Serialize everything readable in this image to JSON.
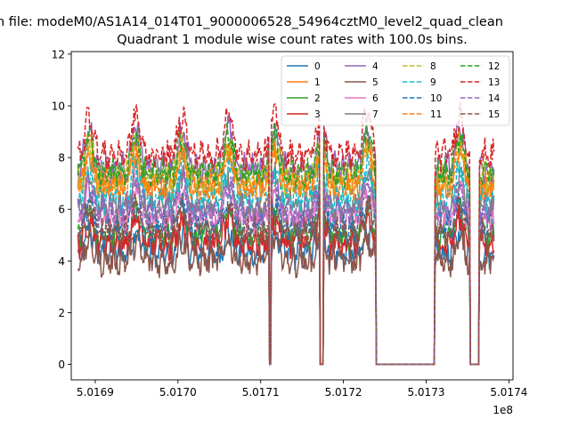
{
  "figure": {
    "suptitle": "n file: modeM0/AS1A14_014T01_9000006528_54964cztM0_level2_quad_clean",
    "title": "Quadrant 1 module wise count rates with 100.0s bins."
  },
  "chart_data": {
    "type": "line",
    "title": "Quadrant 1 module wise count rates with 100.0s bins.",
    "xlabel": "",
    "ylabel": "",
    "x_offset_label": "1e8",
    "xlim": [
      501687100,
      501740500
    ],
    "ylim": [
      -0.6,
      12.1
    ],
    "x_ticks": [
      501690000,
      501700000,
      501710000,
      501720000,
      501730000,
      501740000
    ],
    "x_tick_labels": [
      "5.0169",
      "5.0170",
      "5.0171",
      "5.0172",
      "5.0173",
      "5.0174"
    ],
    "y_ticks": [
      0,
      2,
      4,
      6,
      8,
      10,
      12
    ],
    "y_tick_labels": [
      "0",
      "2",
      "4",
      "6",
      "8",
      "10",
      "12"
    ],
    "grid": false,
    "legend": {
      "placement": "top-right",
      "columns": 4
    },
    "x_range": [
      501687900,
      501738200
    ],
    "gaps": [
      [
        501711000,
        501711200
      ],
      [
        501717200,
        501717600
      ],
      [
        501723900,
        501725300
      ],
      [
        501725300,
        501731000
      ],
      [
        501735300,
        501736400
      ]
    ],
    "series": [
      {
        "name": "0",
        "color": "#1f77b4",
        "dash": "solid",
        "level": 4.3
      },
      {
        "name": "1",
        "color": "#ff7f0e",
        "dash": "solid",
        "level": 6.9
      },
      {
        "name": "2",
        "color": "#2ca02c",
        "dash": "solid",
        "level": 5.0
      },
      {
        "name": "3",
        "color": "#d62728",
        "dash": "solid",
        "level": 4.7
      },
      {
        "name": "4",
        "color": "#9467bd",
        "dash": "solid",
        "level": 7.6
      },
      {
        "name": "5",
        "color": "#8c564b",
        "dash": "solid",
        "level": 4.0
      },
      {
        "name": "6",
        "color": "#e377c2",
        "dash": "solid",
        "level": 5.6
      },
      {
        "name": "7",
        "color": "#7f7f7f",
        "dash": "solid",
        "level": 6.1
      },
      {
        "name": "8",
        "color": "#bcbd22",
        "dash": "dashed",
        "level": 7.2
      },
      {
        "name": "9",
        "color": "#17becf",
        "dash": "dashed",
        "level": 6.4
      },
      {
        "name": "10",
        "color": "#1f77b4",
        "dash": "dashed",
        "level": 5.3
      },
      {
        "name": "11",
        "color": "#ff7f0e",
        "dash": "dashed",
        "level": 7.0
      },
      {
        "name": "12",
        "color": "#2ca02c",
        "dash": "dashed",
        "level": 7.4
      },
      {
        "name": "13",
        "color": "#d62728",
        "dash": "dashed",
        "level": 8.1
      },
      {
        "name": "14",
        "color": "#9467bd",
        "dash": "dashed",
        "level": 5.9
      },
      {
        "name": "15",
        "color": "#8c564b",
        "dash": "dashed",
        "level": 5.1
      }
    ]
  }
}
